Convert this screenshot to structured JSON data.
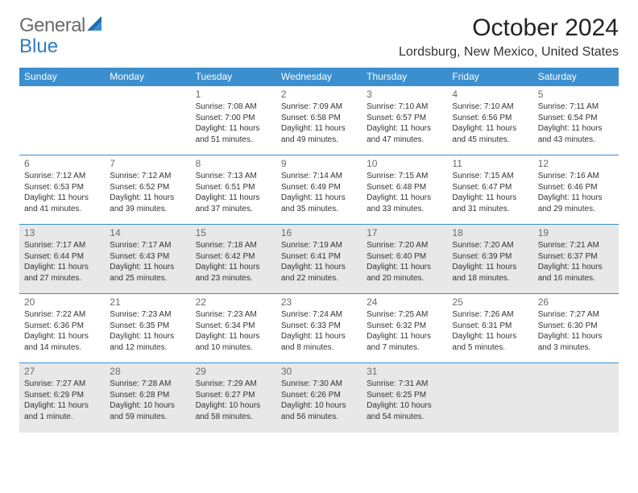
{
  "logo": {
    "word1": "General",
    "word2": "Blue"
  },
  "title": "October 2024",
  "location": "Lordsburg, New Mexico, United States",
  "colors": {
    "header_bg": "#3b8fcf",
    "header_fg": "#ffffff",
    "cell_border": "#3b8fcf",
    "gray_row": "#e8e8e8",
    "body_fg": "#222222",
    "logo_gray": "#6b6b6b",
    "logo_blue": "#2f7ac2"
  },
  "weekdays": [
    "Sunday",
    "Monday",
    "Tuesday",
    "Wednesday",
    "Thursday",
    "Friday",
    "Saturday"
  ],
  "weeks": [
    {
      "gray": false,
      "days": [
        null,
        null,
        {
          "n": "1",
          "sr": "7:08 AM",
          "ss": "7:00 PM",
          "dl": "11 hours and 51 minutes."
        },
        {
          "n": "2",
          "sr": "7:09 AM",
          "ss": "6:58 PM",
          "dl": "11 hours and 49 minutes."
        },
        {
          "n": "3",
          "sr": "7:10 AM",
          "ss": "6:57 PM",
          "dl": "11 hours and 47 minutes."
        },
        {
          "n": "4",
          "sr": "7:10 AM",
          "ss": "6:56 PM",
          "dl": "11 hours and 45 minutes."
        },
        {
          "n": "5",
          "sr": "7:11 AM",
          "ss": "6:54 PM",
          "dl": "11 hours and 43 minutes."
        }
      ]
    },
    {
      "gray": false,
      "days": [
        {
          "n": "6",
          "sr": "7:12 AM",
          "ss": "6:53 PM",
          "dl": "11 hours and 41 minutes."
        },
        {
          "n": "7",
          "sr": "7:12 AM",
          "ss": "6:52 PM",
          "dl": "11 hours and 39 minutes."
        },
        {
          "n": "8",
          "sr": "7:13 AM",
          "ss": "6:51 PM",
          "dl": "11 hours and 37 minutes."
        },
        {
          "n": "9",
          "sr": "7:14 AM",
          "ss": "6:49 PM",
          "dl": "11 hours and 35 minutes."
        },
        {
          "n": "10",
          "sr": "7:15 AM",
          "ss": "6:48 PM",
          "dl": "11 hours and 33 minutes."
        },
        {
          "n": "11",
          "sr": "7:15 AM",
          "ss": "6:47 PM",
          "dl": "11 hours and 31 minutes."
        },
        {
          "n": "12",
          "sr": "7:16 AM",
          "ss": "6:46 PM",
          "dl": "11 hours and 29 minutes."
        }
      ]
    },
    {
      "gray": true,
      "days": [
        {
          "n": "13",
          "sr": "7:17 AM",
          "ss": "6:44 PM",
          "dl": "11 hours and 27 minutes."
        },
        {
          "n": "14",
          "sr": "7:17 AM",
          "ss": "6:43 PM",
          "dl": "11 hours and 25 minutes."
        },
        {
          "n": "15",
          "sr": "7:18 AM",
          "ss": "6:42 PM",
          "dl": "11 hours and 23 minutes."
        },
        {
          "n": "16",
          "sr": "7:19 AM",
          "ss": "6:41 PM",
          "dl": "11 hours and 22 minutes."
        },
        {
          "n": "17",
          "sr": "7:20 AM",
          "ss": "6:40 PM",
          "dl": "11 hours and 20 minutes."
        },
        {
          "n": "18",
          "sr": "7:20 AM",
          "ss": "6:39 PM",
          "dl": "11 hours and 18 minutes."
        },
        {
          "n": "19",
          "sr": "7:21 AM",
          "ss": "6:37 PM",
          "dl": "11 hours and 16 minutes."
        }
      ]
    },
    {
      "gray": false,
      "days": [
        {
          "n": "20",
          "sr": "7:22 AM",
          "ss": "6:36 PM",
          "dl": "11 hours and 14 minutes."
        },
        {
          "n": "21",
          "sr": "7:23 AM",
          "ss": "6:35 PM",
          "dl": "11 hours and 12 minutes."
        },
        {
          "n": "22",
          "sr": "7:23 AM",
          "ss": "6:34 PM",
          "dl": "11 hours and 10 minutes."
        },
        {
          "n": "23",
          "sr": "7:24 AM",
          "ss": "6:33 PM",
          "dl": "11 hours and 8 minutes."
        },
        {
          "n": "24",
          "sr": "7:25 AM",
          "ss": "6:32 PM",
          "dl": "11 hours and 7 minutes."
        },
        {
          "n": "25",
          "sr": "7:26 AM",
          "ss": "6:31 PM",
          "dl": "11 hours and 5 minutes."
        },
        {
          "n": "26",
          "sr": "7:27 AM",
          "ss": "6:30 PM",
          "dl": "11 hours and 3 minutes."
        }
      ]
    },
    {
      "gray": true,
      "days": [
        {
          "n": "27",
          "sr": "7:27 AM",
          "ss": "6:29 PM",
          "dl": "11 hours and 1 minute."
        },
        {
          "n": "28",
          "sr": "7:28 AM",
          "ss": "6:28 PM",
          "dl": "10 hours and 59 minutes."
        },
        {
          "n": "29",
          "sr": "7:29 AM",
          "ss": "6:27 PM",
          "dl": "10 hours and 58 minutes."
        },
        {
          "n": "30",
          "sr": "7:30 AM",
          "ss": "6:26 PM",
          "dl": "10 hours and 56 minutes."
        },
        {
          "n": "31",
          "sr": "7:31 AM",
          "ss": "6:25 PM",
          "dl": "10 hours and 54 minutes."
        },
        null,
        null
      ]
    }
  ],
  "labels": {
    "sunrise": "Sunrise: ",
    "sunset": "Sunset: ",
    "daylight": "Daylight: "
  }
}
